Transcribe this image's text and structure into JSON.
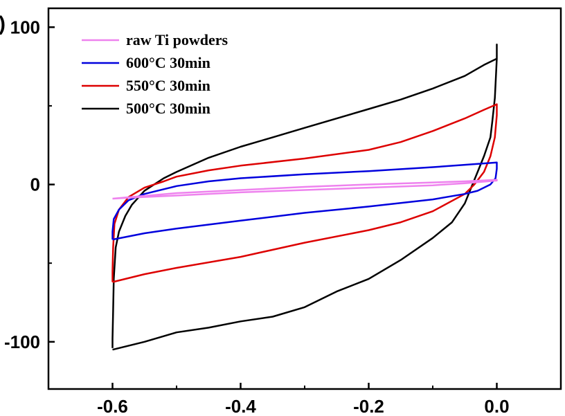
{
  "panel_label": ")",
  "chart_data": {
    "type": "line",
    "title": "",
    "xlabel": "",
    "ylabel": "",
    "xlim": [
      -0.7,
      0.1
    ],
    "ylim": [
      -130,
      112
    ],
    "grid": false,
    "legend_position": "top-left",
    "x_ticks": [
      {
        "value": -0.6,
        "label": "-0.6"
      },
      {
        "value": -0.4,
        "label": "-0.4"
      },
      {
        "value": -0.2,
        "label": "-0.2"
      },
      {
        "value": 0.0,
        "label": "0.0"
      }
    ],
    "y_ticks": [
      {
        "value": 100,
        "label": "100"
      },
      {
        "value": 0,
        "label": "0"
      },
      {
        "value": -100,
        "label": "-100"
      }
    ],
    "series": [
      {
        "name": "raw Ti powders",
        "color": "#ee82ee",
        "points": [
          [
            -0.6,
            -9
          ],
          [
            -0.5,
            -5.5
          ],
          [
            -0.4,
            -3.5
          ],
          [
            -0.3,
            -1.5
          ],
          [
            -0.2,
            0
          ],
          [
            -0.1,
            1.3
          ],
          [
            -0.05,
            2
          ],
          [
            0.0,
            3
          ],
          [
            0.0,
            2.5
          ],
          [
            -0.05,
            0.8
          ],
          [
            -0.1,
            -0.5
          ],
          [
            -0.2,
            -2
          ],
          [
            -0.3,
            -3.5
          ],
          [
            -0.4,
            -5
          ],
          [
            -0.5,
            -7
          ],
          [
            -0.58,
            -8.5
          ],
          [
            -0.6,
            -9
          ]
        ]
      },
      {
        "name": "600°C 30min",
        "color": "#0000dd",
        "points": [
          [
            -0.6,
            -35
          ],
          [
            -0.6,
            -30
          ],
          [
            -0.598,
            -22
          ],
          [
            -0.59,
            -16
          ],
          [
            -0.575,
            -10
          ],
          [
            -0.55,
            -6
          ],
          [
            -0.5,
            -1
          ],
          [
            -0.45,
            2
          ],
          [
            -0.4,
            4
          ],
          [
            -0.3,
            6.5
          ],
          [
            -0.2,
            8.5
          ],
          [
            -0.1,
            11
          ],
          [
            -0.05,
            12.5
          ],
          [
            0.0,
            14
          ],
          [
            0.0,
            10
          ],
          [
            -0.002,
            4
          ],
          [
            -0.01,
            0
          ],
          [
            -0.03,
            -4
          ],
          [
            -0.05,
            -6
          ],
          [
            -0.1,
            -9.5
          ],
          [
            -0.2,
            -14
          ],
          [
            -0.3,
            -18
          ],
          [
            -0.4,
            -23
          ],
          [
            -0.5,
            -28
          ],
          [
            -0.55,
            -31
          ],
          [
            -0.6,
            -35
          ]
        ]
      },
      {
        "name": "550°C 30min",
        "color": "#dd0000",
        "points": [
          [
            -0.6,
            -62
          ],
          [
            -0.6,
            -55
          ],
          [
            -0.599,
            -40
          ],
          [
            -0.597,
            -25
          ],
          [
            -0.59,
            -16
          ],
          [
            -0.575,
            -8
          ],
          [
            -0.55,
            -2
          ],
          [
            -0.52,
            2
          ],
          [
            -0.5,
            5
          ],
          [
            -0.45,
            9
          ],
          [
            -0.4,
            12
          ],
          [
            -0.3,
            16.5
          ],
          [
            -0.2,
            22
          ],
          [
            -0.15,
            27
          ],
          [
            -0.1,
            34
          ],
          [
            -0.05,
            42
          ],
          [
            -0.02,
            47.5
          ],
          [
            0.0,
            51
          ],
          [
            0.0,
            44
          ],
          [
            -0.003,
            30
          ],
          [
            -0.01,
            18
          ],
          [
            -0.02,
            8
          ],
          [
            -0.035,
            0
          ],
          [
            -0.05,
            -6
          ],
          [
            -0.1,
            -17
          ],
          [
            -0.15,
            -24
          ],
          [
            -0.2,
            -29
          ],
          [
            -0.3,
            -37
          ],
          [
            -0.4,
            -46
          ],
          [
            -0.5,
            -53
          ],
          [
            -0.55,
            -57
          ],
          [
            -0.6,
            -62
          ]
        ]
      },
      {
        "name": "500°C 30min",
        "color": "#000000",
        "points": [
          [
            -0.6,
            -104
          ],
          [
            -0.6,
            -98
          ],
          [
            -0.599,
            -80
          ],
          [
            -0.598,
            -60
          ],
          [
            -0.595,
            -40
          ],
          [
            -0.59,
            -30
          ],
          [
            -0.58,
            -20
          ],
          [
            -0.57,
            -13
          ],
          [
            -0.55,
            -4
          ],
          [
            -0.52,
            4
          ],
          [
            -0.5,
            8
          ],
          [
            -0.45,
            17
          ],
          [
            -0.4,
            24
          ],
          [
            -0.35,
            30
          ],
          [
            -0.3,
            36
          ],
          [
            -0.2,
            48
          ],
          [
            -0.15,
            54
          ],
          [
            -0.1,
            61
          ],
          [
            -0.05,
            69
          ],
          [
            -0.02,
            76
          ],
          [
            0.0,
            80
          ],
          [
            0.0,
            89
          ],
          [
            0.0,
            80
          ],
          [
            -0.003,
            55
          ],
          [
            -0.007,
            40
          ],
          [
            -0.01,
            30
          ],
          [
            -0.02,
            18
          ],
          [
            -0.03,
            8
          ],
          [
            -0.04,
            -2
          ],
          [
            -0.05,
            -12
          ],
          [
            -0.07,
            -24
          ],
          [
            -0.1,
            -34
          ],
          [
            -0.15,
            -48
          ],
          [
            -0.2,
            -60
          ],
          [
            -0.25,
            -68
          ],
          [
            -0.3,
            -78
          ],
          [
            -0.35,
            -84
          ],
          [
            -0.4,
            -87
          ],
          [
            -0.45,
            -91
          ],
          [
            -0.5,
            -94
          ],
          [
            -0.55,
            -100
          ],
          [
            -0.6,
            -105
          ]
        ]
      }
    ]
  }
}
